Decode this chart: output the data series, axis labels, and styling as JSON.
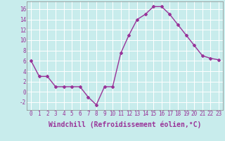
{
  "x": [
    0,
    1,
    2,
    3,
    4,
    5,
    6,
    7,
    8,
    9,
    10,
    11,
    12,
    13,
    14,
    15,
    16,
    17,
    18,
    19,
    20,
    21,
    22,
    23
  ],
  "y": [
    6,
    3,
    3,
    1,
    1,
    1,
    1,
    -1,
    -2.5,
    1,
    1,
    7.5,
    11,
    14,
    15,
    16.5,
    16.5,
    15,
    13,
    11,
    9,
    7,
    6.5,
    6.2
  ],
  "line_color": "#993399",
  "marker": "D",
  "marker_size": 2,
  "xlabel": "Windchill (Refroidissement éolien,°C)",
  "xlabel_fontsize": 7,
  "xlim": [
    -0.5,
    23.5
  ],
  "ylim": [
    -3.5,
    17.5
  ],
  "yticks": [
    -2,
    0,
    2,
    4,
    6,
    8,
    10,
    12,
    14,
    16
  ],
  "xticks": [
    0,
    1,
    2,
    3,
    4,
    5,
    6,
    7,
    8,
    9,
    10,
    11,
    12,
    13,
    14,
    15,
    16,
    17,
    18,
    19,
    20,
    21,
    22,
    23
  ],
  "grid_color": "#ffffff",
  "background_color": "#c8ecec",
  "tick_fontsize": 5.5,
  "line_width": 1.0
}
